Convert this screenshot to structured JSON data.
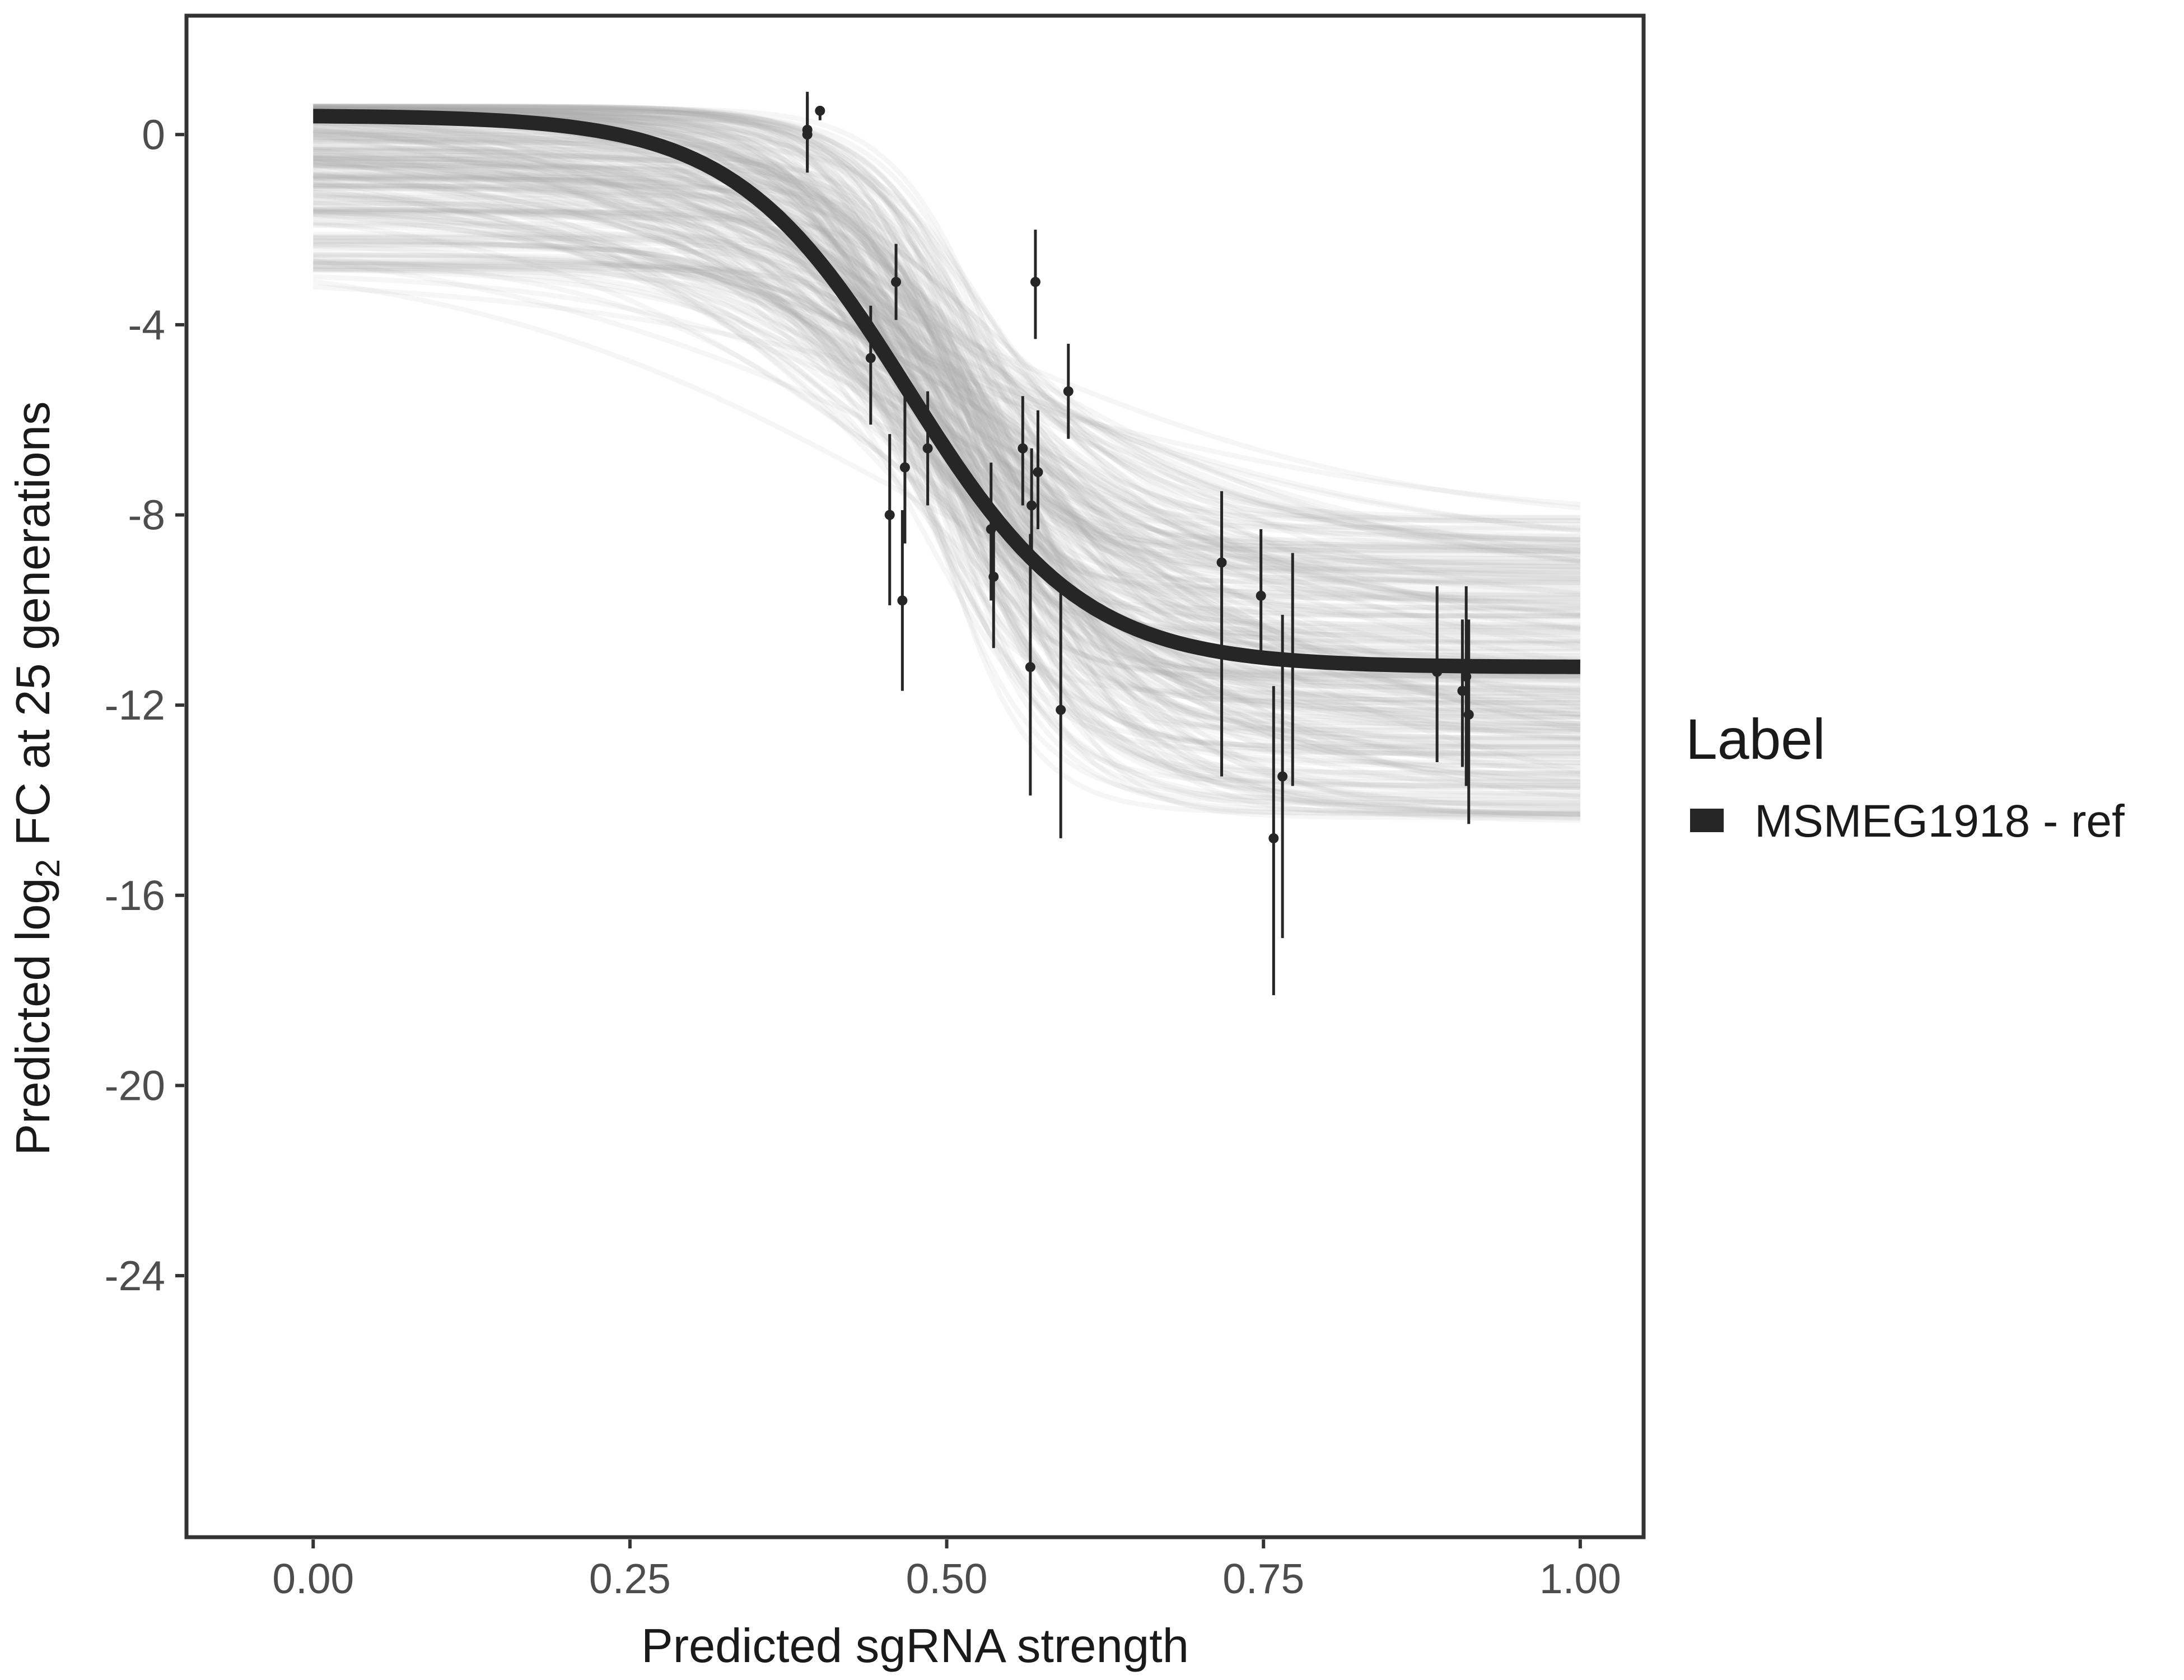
{
  "chart_data": {
    "type": "line",
    "xlabel": "Predicted sgRNA strength",
    "ylabel_prefix": "Predicted  log",
    "ylabel_subscript": "2",
    "ylabel_suffix": " FC at 25 generations",
    "xlim": [
      -0.1,
      1.05
    ],
    "ylim": [
      -29.5,
      2.5
    ],
    "x_ticks": [
      0,
      0.25,
      0.5,
      0.75,
      1
    ],
    "x_tick_labels": [
      "0.00",
      "0.25",
      "0.50",
      "0.75",
      "1.00"
    ],
    "y_ticks": [
      0,
      -4,
      -8,
      -12,
      -16,
      -20,
      -24
    ],
    "y_tick_labels": [
      "0",
      "-4",
      "-8",
      "-12",
      "-16",
      "-20",
      "-24"
    ],
    "grid": false,
    "legend": {
      "title": "Label",
      "placement": "right",
      "entries": [
        {
          "label": "MSMEG1918 - ref",
          "color": "#262626"
        }
      ]
    },
    "fit": {
      "name": "MSMEG1918 - ref",
      "model": "logistic",
      "upper": 0.4,
      "lower": -11.2,
      "midpoint": 0.47,
      "slope": 14.5,
      "color": "#262626"
    },
    "posterior_draws": {
      "count": 240,
      "color": "#a6a6a6",
      "upper_range": [
        -3.0,
        0.6
      ],
      "lower_range": [
        -14.5,
        -8.0
      ],
      "midpoint_range": [
        0.35,
        0.55
      ],
      "slope_range": [
        5,
        26
      ]
    },
    "points": [
      {
        "x": 0.39,
        "y": 0.1,
        "ylo": -0.8,
        "yhi": 0.9
      },
      {
        "x": 0.39,
        "y": 0.0,
        "ylo": -0.7,
        "yhi": 0.8
      },
      {
        "x": 0.4,
        "y": 0.5,
        "ylo": 0.3,
        "yhi": 0.6
      },
      {
        "x": 0.44,
        "y": -4.7,
        "ylo": -6.1,
        "yhi": -3.6
      },
      {
        "x": 0.455,
        "y": -8.0,
        "ylo": -9.9,
        "yhi": -6.3
      },
      {
        "x": 0.46,
        "y": -3.1,
        "ylo": -3.9,
        "yhi": -2.3
      },
      {
        "x": 0.465,
        "y": -9.8,
        "ylo": -11.7,
        "yhi": -7.9
      },
      {
        "x": 0.467,
        "y": -7.0,
        "ylo": -8.6,
        "yhi": -5.5
      },
      {
        "x": 0.485,
        "y": -6.6,
        "ylo": -7.8,
        "yhi": -5.4
      },
      {
        "x": 0.535,
        "y": -8.3,
        "ylo": -9.8,
        "yhi": -6.9
      },
      {
        "x": 0.537,
        "y": -9.3,
        "ylo": -10.8,
        "yhi": -7.8
      },
      {
        "x": 0.56,
        "y": -6.6,
        "ylo": -7.8,
        "yhi": -5.5
      },
      {
        "x": 0.567,
        "y": -7.8,
        "ylo": -9.1,
        "yhi": -6.6
      },
      {
        "x": 0.566,
        "y": -11.2,
        "ylo": -13.9,
        "yhi": -8.4
      },
      {
        "x": 0.572,
        "y": -7.1,
        "ylo": -8.3,
        "yhi": -5.8
      },
      {
        "x": 0.57,
        "y": -3.1,
        "ylo": -4.3,
        "yhi": -2.0
      },
      {
        "x": 0.59,
        "y": -12.1,
        "ylo": -14.8,
        "yhi": -9.4
      },
      {
        "x": 0.596,
        "y": -5.4,
        "ylo": -6.4,
        "yhi": -4.4
      },
      {
        "x": 0.717,
        "y": -9.0,
        "ylo": -13.5,
        "yhi": -7.5
      },
      {
        "x": 0.748,
        "y": -9.7,
        "ylo": -11.1,
        "yhi": -8.3
      },
      {
        "x": 0.758,
        "y": -14.8,
        "ylo": -18.1,
        "yhi": -11.6
      },
      {
        "x": 0.765,
        "y": -13.5,
        "ylo": -16.9,
        "yhi": -10.1
      },
      {
        "x": 0.773,
        "y": -11.1,
        "ylo": -13.7,
        "yhi": -8.8
      },
      {
        "x": 0.887,
        "y": -11.3,
        "ylo": -13.2,
        "yhi": -9.5
      },
      {
        "x": 0.907,
        "y": -11.7,
        "ylo": -13.3,
        "yhi": -10.2
      },
      {
        "x": 0.91,
        "y": -11.4,
        "ylo": -13.7,
        "yhi": -9.5
      },
      {
        "x": 0.912,
        "y": -12.2,
        "ylo": -14.5,
        "yhi": -10.2
      }
    ]
  }
}
